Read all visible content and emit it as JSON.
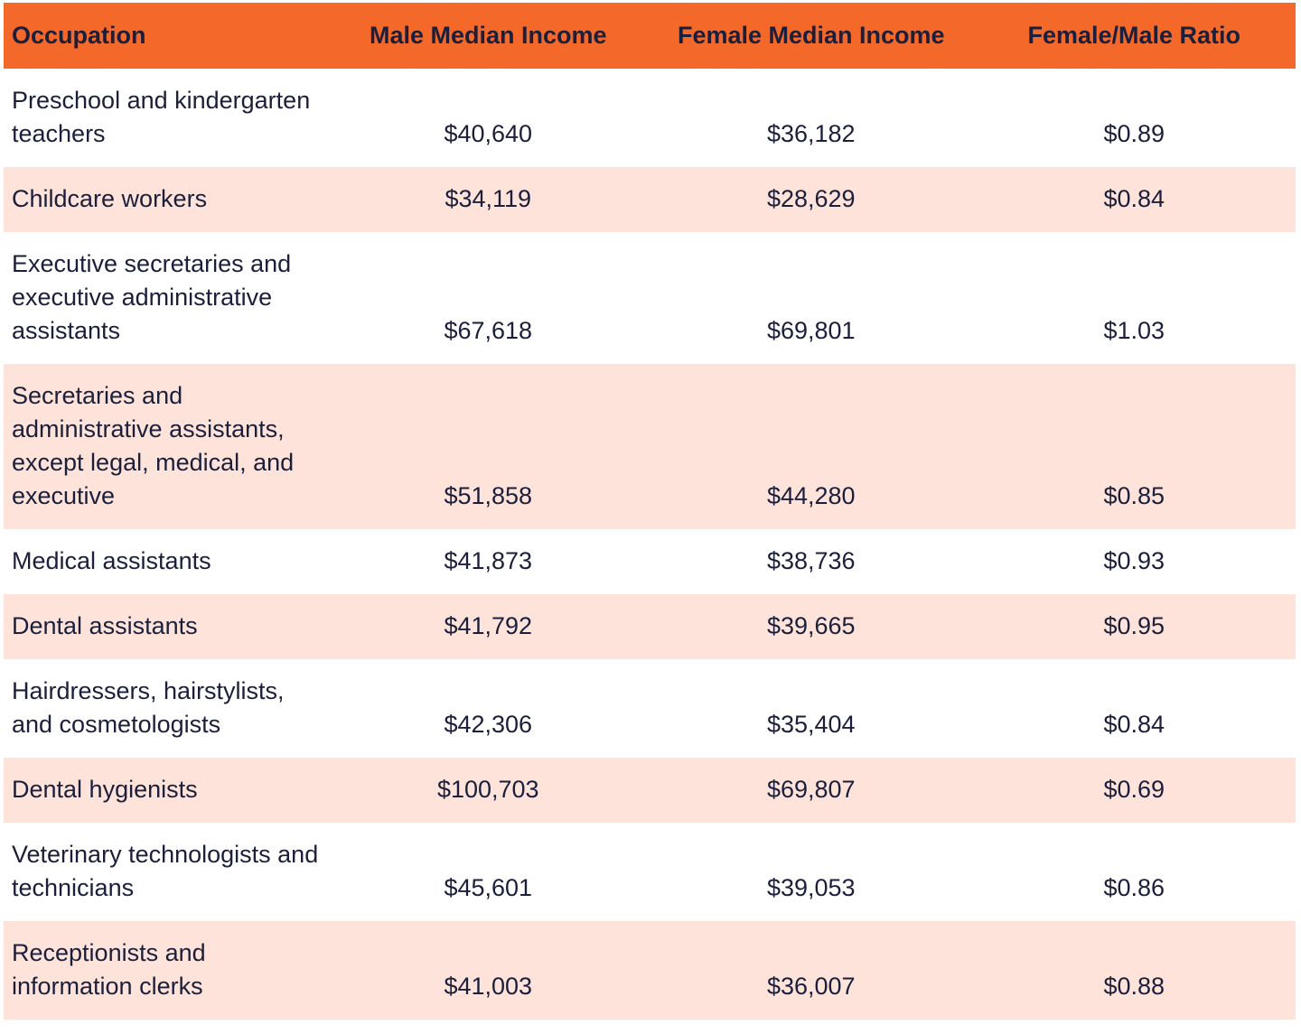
{
  "table": {
    "columns": [
      "Occupation",
      "Male Median Income",
      "Female Median Income",
      "Female/Male Ratio"
    ],
    "rows": [
      [
        "Preschool and kindergarten teachers",
        "$40,640",
        "$36,182",
        "$0.89"
      ],
      [
        "Childcare workers",
        "$34,119",
        "$28,629",
        "$0.84"
      ],
      [
        "Executive secretaries and executive administrative assistants",
        "$67,618",
        "$69,801",
        "$1.03"
      ],
      [
        "Secretaries and administrative assistants, except legal, medical, and executive",
        "$51,858",
        "$44,280",
        "$0.85"
      ],
      [
        "Medical assistants",
        "$41,873",
        "$38,736",
        "$0.93"
      ],
      [
        "Dental assistants",
        "$41,792",
        "$39,665",
        "$0.95"
      ],
      [
        "Hairdressers, hairstylists, and cosmetologists",
        "$42,306",
        "$35,404",
        "$0.84"
      ],
      [
        "Dental hygienists",
        "$100,703",
        "$69,807",
        "$0.69"
      ],
      [
        "Veterinary technologists and technicians",
        "$45,601",
        "$39,053",
        "$0.86"
      ],
      [
        "Receptionists and information clerks",
        "$41,003",
        "$36,007",
        "$0.88"
      ]
    ]
  }
}
